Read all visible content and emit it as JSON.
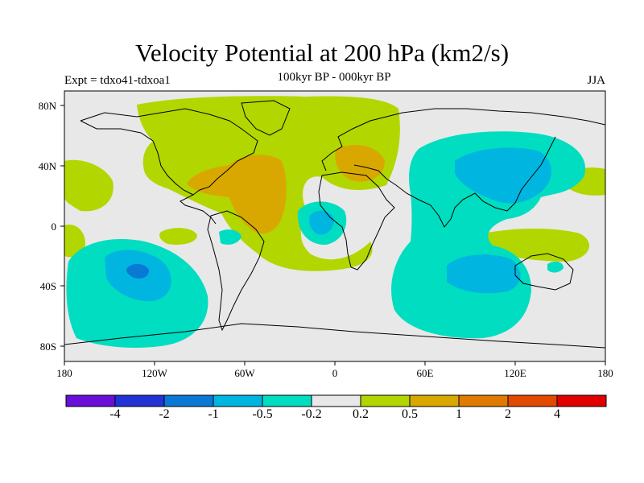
{
  "title": "Velocity Potential at 200 hPa (km2/s)",
  "subtitle_left": "Expt = tdxo41-tdxoa1",
  "subtitle_center": "100kyr BP - 000kyr BP",
  "subtitle_right": "JJA",
  "lat_ticks": [
    "80N",
    "40N",
    "0",
    "40S",
    "80S"
  ],
  "lon_ticks": [
    "180",
    "120W",
    "60W",
    "0",
    "60E",
    "120E",
    "180"
  ],
  "colorbar": {
    "colors": [
      "#6a0fd8",
      "#2233d6",
      "#0a79d6",
      "#00b6e0",
      "#00ddc0",
      "#e8e8e8",
      "#b2d600",
      "#d9a800",
      "#e07a00",
      "#e24a00",
      "#e00000"
    ],
    "labels": [
      "-4",
      "-2",
      "-1",
      "-0.5",
      "-0.2",
      "0.2",
      "0.5",
      "1",
      "2",
      "4"
    ]
  },
  "colors": {
    "green": "#b2d600",
    "orange": "#d9a800",
    "cyan": "#00ddc0",
    "blue": "#00b6e0",
    "deep_blue": "#0a79d6",
    "neutral": "#e8e8e8"
  }
}
